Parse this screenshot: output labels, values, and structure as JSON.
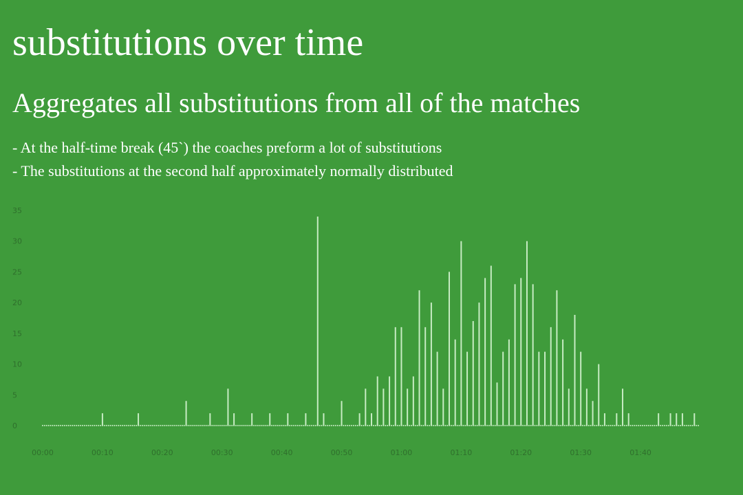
{
  "header": {
    "title": "substitutions over time",
    "subtitle": "Aggregates all substitutions from all of the matches",
    "notes": [
      "- At the half-time break (45`) the coaches preform a lot of substitutions",
      "- The substitutions at the second half approximately normally distributed"
    ]
  },
  "colors": {
    "background": "#3f9b3b",
    "bar": "#c8ecc4",
    "tick_label": "#2f6f2c"
  },
  "chart_data": {
    "type": "bar",
    "title": "",
    "xlabel": "",
    "ylabel": "",
    "x_unit": "minute",
    "xlim": [
      0,
      110
    ],
    "ylim": [
      0,
      35
    ],
    "yticks": [
      0,
      5,
      10,
      15,
      20,
      25,
      30,
      35
    ],
    "xticks": [
      {
        "minute": 0,
        "label": "00:00"
      },
      {
        "minute": 10,
        "label": "00:10"
      },
      {
        "minute": 20,
        "label": "00:20"
      },
      {
        "minute": 30,
        "label": "00:30"
      },
      {
        "minute": 40,
        "label": "00:40"
      },
      {
        "minute": 50,
        "label": "00:50"
      },
      {
        "minute": 60,
        "label": "01:00"
      },
      {
        "minute": 70,
        "label": "01:10"
      },
      {
        "minute": 80,
        "label": "01:20"
      },
      {
        "minute": 90,
        "label": "01:30"
      },
      {
        "minute": 100,
        "label": "01:40"
      }
    ],
    "grid": false,
    "legend": "none",
    "x": [
      0,
      1,
      2,
      3,
      4,
      5,
      6,
      7,
      8,
      9,
      10,
      11,
      12,
      13,
      14,
      15,
      16,
      17,
      18,
      19,
      20,
      21,
      22,
      23,
      24,
      25,
      26,
      27,
      28,
      29,
      30,
      31,
      32,
      33,
      34,
      35,
      36,
      37,
      38,
      39,
      40,
      41,
      42,
      43,
      44,
      45,
      46,
      47,
      48,
      49,
      50,
      51,
      52,
      53,
      54,
      55,
      56,
      57,
      58,
      59,
      60,
      61,
      62,
      63,
      64,
      65,
      66,
      67,
      68,
      69,
      70,
      71,
      72,
      73,
      74,
      75,
      76,
      77,
      78,
      79,
      80,
      81,
      82,
      83,
      84,
      85,
      86,
      87,
      88,
      89,
      90,
      91,
      92,
      93,
      94,
      95,
      96,
      97,
      98,
      99,
      100,
      101,
      102,
      103,
      104,
      105,
      106,
      107,
      108,
      109,
      110
    ],
    "values": [
      0,
      0,
      0,
      0,
      0,
      0,
      0,
      0,
      0,
      0,
      2,
      0,
      0,
      0,
      0,
      0,
      2,
      0,
      0,
      0,
      0,
      0,
      0,
      0,
      4,
      0,
      0,
      0,
      2,
      0,
      0,
      6,
      2,
      0,
      0,
      2,
      0,
      0,
      2,
      0,
      0,
      2,
      0,
      0,
      2,
      0,
      34,
      2,
      0,
      0,
      4,
      0,
      0,
      2,
      6,
      2,
      8,
      6,
      8,
      16,
      16,
      6,
      8,
      22,
      16,
      20,
      12,
      6,
      25,
      14,
      30,
      12,
      17,
      20,
      24,
      26,
      7,
      12,
      14,
      23,
      24,
      30,
      23,
      12,
      12,
      16,
      22,
      14,
      6,
      18,
      12,
      6,
      4,
      10,
      2,
      0,
      2,
      6,
      2,
      0,
      0,
      0,
      0,
      2,
      0,
      2,
      2,
      2,
      0,
      2,
      0
    ]
  }
}
